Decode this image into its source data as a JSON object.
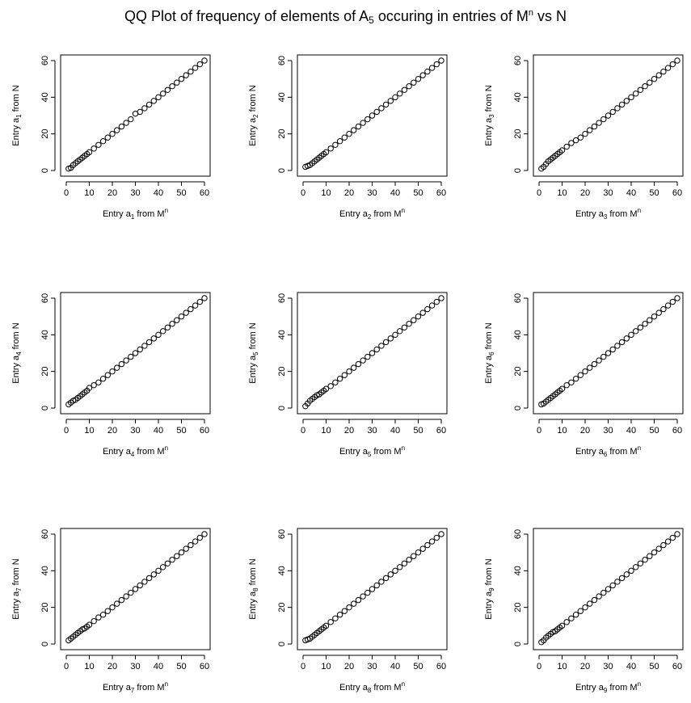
{
  "figure": {
    "title_pre": "QQ Plot of frequency of elements of A",
    "title_sub": "5",
    "title_mid": " occuring in entries of M",
    "title_sup": "n",
    "title_post": " vs N",
    "ylabel_pre": "Entry a",
    "ylabel_post": " from N",
    "xlabel_pre": "Entry a",
    "xlabel_mid": " from M",
    "xlabel_sup": "n"
  },
  "chart_data": [
    {
      "type": "scatter",
      "panel": "a1",
      "subscript": "1",
      "xlim": [
        0,
        60
      ],
      "ylim": [
        0,
        60
      ],
      "x_ticks": [
        0,
        10,
        20,
        30,
        40,
        50,
        60
      ],
      "y_ticks": [
        0,
        20,
        40,
        60
      ],
      "grid": false,
      "x": [
        1,
        2,
        3,
        4,
        5,
        6,
        7,
        8,
        9,
        10,
        12,
        14,
        16,
        18,
        20,
        22,
        24,
        26,
        28,
        30,
        32,
        34,
        36,
        38,
        40,
        42,
        44,
        46,
        48,
        50,
        52,
        54,
        56,
        58,
        60
      ],
      "y": [
        1,
        1.5,
        3,
        4,
        5,
        6,
        7,
        8,
        9,
        10,
        12,
        14,
        16,
        18,
        20,
        22,
        24,
        26,
        28,
        31,
        32,
        34,
        36,
        38,
        40,
        42,
        44,
        46,
        48,
        50,
        52,
        54,
        56,
        58,
        60
      ]
    },
    {
      "type": "scatter",
      "panel": "a2",
      "subscript": "2",
      "xlim": [
        0,
        60
      ],
      "ylim": [
        0,
        60
      ],
      "x_ticks": [
        0,
        10,
        20,
        30,
        40,
        50,
        60
      ],
      "y_ticks": [
        0,
        20,
        40,
        60
      ],
      "grid": false,
      "x": [
        1,
        2,
        3,
        4,
        5,
        6,
        7,
        8,
        9,
        10,
        12,
        14,
        16,
        18,
        20,
        22,
        24,
        26,
        28,
        30,
        32,
        34,
        36,
        38,
        40,
        42,
        44,
        46,
        48,
        50,
        52,
        54,
        56,
        58,
        60
      ],
      "y": [
        2,
        2.5,
        3,
        4,
        5,
        6,
        7,
        8,
        9,
        10,
        12,
        14,
        16,
        18,
        20,
        22,
        24,
        26,
        28,
        30,
        32,
        34,
        36,
        38,
        40,
        42,
        44,
        46,
        48,
        50,
        52,
        54,
        56,
        58,
        60
      ]
    },
    {
      "type": "scatter",
      "panel": "a3",
      "subscript": "3",
      "xlim": [
        0,
        60
      ],
      "ylim": [
        0,
        60
      ],
      "x_ticks": [
        0,
        10,
        20,
        30,
        40,
        50,
        60
      ],
      "y_ticks": [
        0,
        20,
        40,
        60
      ],
      "grid": false,
      "x": [
        1,
        2,
        3,
        4,
        5,
        6,
        7,
        8,
        9,
        10,
        12,
        14,
        16,
        18,
        20,
        22,
        24,
        26,
        28,
        30,
        32,
        34,
        36,
        38,
        40,
        42,
        44,
        46,
        48,
        50,
        52,
        54,
        56,
        58,
        60
      ],
      "y": [
        1,
        2,
        3.5,
        5,
        6,
        7,
        8,
        9,
        10,
        11,
        13,
        15,
        16.5,
        18,
        20,
        22,
        24,
        26,
        28,
        30,
        32,
        34,
        36,
        38,
        40,
        42,
        44,
        46,
        48,
        50,
        52,
        54,
        56,
        58,
        60
      ]
    },
    {
      "type": "scatter",
      "panel": "a4",
      "subscript": "4",
      "xlim": [
        0,
        60
      ],
      "ylim": [
        0,
        60
      ],
      "x_ticks": [
        0,
        10,
        20,
        30,
        40,
        50,
        60
      ],
      "y_ticks": [
        0,
        20,
        40,
        60
      ],
      "grid": false,
      "x": [
        1,
        2,
        3,
        4,
        5,
        6,
        7,
        8,
        9,
        10,
        12,
        14,
        16,
        18,
        20,
        22,
        24,
        26,
        28,
        30,
        32,
        34,
        36,
        38,
        40,
        42,
        44,
        46,
        48,
        50,
        52,
        54,
        56,
        58,
        60
      ],
      "y": [
        2,
        3,
        4,
        4.5,
        5.5,
        6.5,
        7.5,
        8.5,
        9.5,
        11,
        12.5,
        14,
        16,
        18,
        20,
        22,
        24,
        26,
        28,
        30,
        32,
        34,
        36,
        38,
        40,
        42,
        44,
        46,
        48,
        50,
        52,
        54,
        56,
        58,
        60
      ]
    },
    {
      "type": "scatter",
      "panel": "a5",
      "subscript": "5",
      "xlim": [
        0,
        60
      ],
      "ylim": [
        0,
        60
      ],
      "x_ticks": [
        0,
        10,
        20,
        30,
        40,
        50,
        60
      ],
      "y_ticks": [
        0,
        20,
        40,
        60
      ],
      "grid": false,
      "x": [
        1,
        2,
        3,
        4,
        5,
        6,
        7,
        8,
        9,
        10,
        12,
        14,
        16,
        18,
        20,
        22,
        24,
        26,
        28,
        30,
        32,
        34,
        36,
        38,
        40,
        42,
        44,
        46,
        48,
        50,
        52,
        54,
        56,
        58,
        60
      ],
      "y": [
        1,
        2.5,
        4,
        5,
        6,
        7,
        7.5,
        8.5,
        9.5,
        10.5,
        12,
        14,
        16,
        18,
        20,
        22,
        24,
        26,
        28,
        30,
        32,
        34,
        36,
        38,
        40,
        42,
        44,
        46,
        48,
        50,
        52,
        54,
        56,
        58,
        60
      ]
    },
    {
      "type": "scatter",
      "panel": "a6",
      "subscript": "6",
      "xlim": [
        0,
        60
      ],
      "ylim": [
        0,
        60
      ],
      "x_ticks": [
        0,
        10,
        20,
        30,
        40,
        50,
        60
      ],
      "y_ticks": [
        0,
        20,
        40,
        60
      ],
      "grid": false,
      "x": [
        1,
        2,
        3,
        4,
        5,
        6,
        7,
        8,
        9,
        10,
        12,
        14,
        16,
        18,
        20,
        22,
        24,
        26,
        28,
        30,
        32,
        34,
        36,
        38,
        40,
        42,
        44,
        46,
        48,
        50,
        52,
        54,
        56,
        58,
        60
      ],
      "y": [
        2,
        2.5,
        3.5,
        4.5,
        5.5,
        6.5,
        7.5,
        8.5,
        9.5,
        10.5,
        12.5,
        14,
        16,
        18,
        20,
        22,
        24,
        26,
        28,
        30,
        32,
        34,
        36,
        38,
        40,
        42,
        44,
        46,
        48,
        50,
        52,
        54,
        56,
        58,
        60
      ]
    },
    {
      "type": "scatter",
      "panel": "a7",
      "subscript": "7",
      "xlim": [
        0,
        60
      ],
      "ylim": [
        0,
        60
      ],
      "x_ticks": [
        0,
        10,
        20,
        30,
        40,
        50,
        60
      ],
      "y_ticks": [
        0,
        20,
        40,
        60
      ],
      "grid": false,
      "x": [
        1,
        2,
        3,
        4,
        5,
        6,
        7,
        8,
        9,
        10,
        12,
        14,
        16,
        18,
        20,
        22,
        24,
        26,
        28,
        30,
        32,
        34,
        36,
        38,
        40,
        42,
        44,
        46,
        48,
        50,
        52,
        54,
        56,
        58,
        60
      ],
      "y": [
        2,
        3,
        4,
        5,
        6,
        7,
        8,
        8.5,
        9.5,
        10.5,
        12.5,
        14.5,
        16,
        18,
        20,
        22,
        24,
        26,
        28,
        30,
        32,
        34,
        36,
        38,
        40,
        42,
        44,
        46,
        48,
        50,
        52,
        54,
        56,
        58,
        60
      ]
    },
    {
      "type": "scatter",
      "panel": "a8",
      "subscript": "8",
      "xlim": [
        0,
        60
      ],
      "ylim": [
        0,
        60
      ],
      "x_ticks": [
        0,
        10,
        20,
        30,
        40,
        50,
        60
      ],
      "y_ticks": [
        0,
        20,
        40,
        60
      ],
      "grid": false,
      "x": [
        1,
        2,
        3,
        4,
        5,
        6,
        7,
        8,
        9,
        10,
        12,
        14,
        16,
        18,
        20,
        22,
        24,
        26,
        28,
        30,
        32,
        34,
        36,
        38,
        40,
        42,
        44,
        46,
        48,
        50,
        52,
        54,
        56,
        58,
        60
      ],
      "y": [
        2,
        2.5,
        3,
        4,
        5,
        6,
        7,
        8,
        9,
        10,
        12,
        14,
        16,
        18,
        20,
        22,
        24,
        26,
        28,
        30,
        32,
        34,
        36,
        38,
        40,
        42,
        44,
        46,
        48,
        50,
        52,
        54,
        56,
        58,
        60
      ]
    },
    {
      "type": "scatter",
      "panel": "a9",
      "subscript": "9",
      "xlim": [
        0,
        60
      ],
      "ylim": [
        0,
        60
      ],
      "x_ticks": [
        0,
        10,
        20,
        30,
        40,
        50,
        60
      ],
      "y_ticks": [
        0,
        20,
        40,
        60
      ],
      "grid": false,
      "x": [
        1,
        2,
        3,
        4,
        5,
        6,
        7,
        8,
        9,
        10,
        12,
        14,
        16,
        18,
        20,
        22,
        24,
        26,
        28,
        30,
        32,
        34,
        36,
        38,
        40,
        42,
        44,
        46,
        48,
        50,
        52,
        54,
        56,
        58,
        60
      ],
      "y": [
        1,
        2,
        3.5,
        4.5,
        5.5,
        6.5,
        7,
        8,
        9,
        10,
        12,
        14,
        16,
        18,
        20,
        22,
        24,
        26,
        28,
        30,
        32,
        34,
        36,
        38,
        40,
        42,
        44,
        46,
        48,
        50,
        52,
        54,
        56,
        58,
        60
      ]
    }
  ]
}
